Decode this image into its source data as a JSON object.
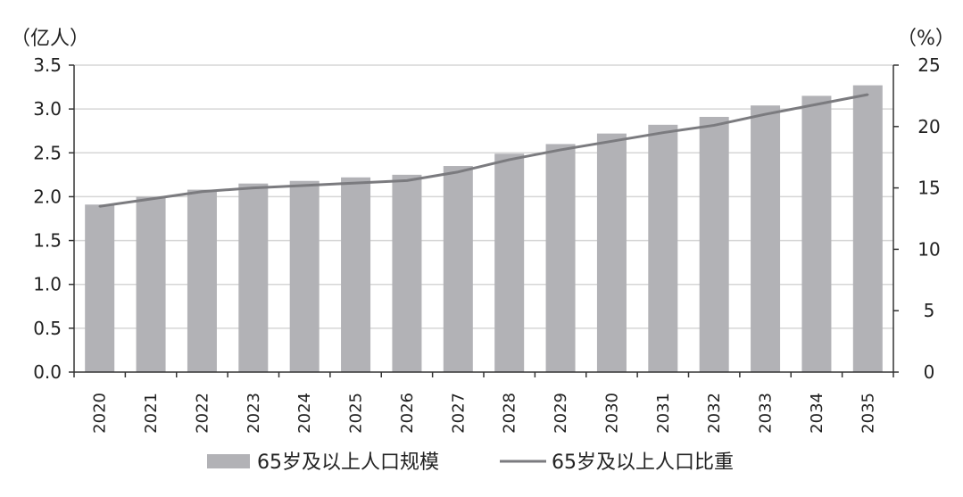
{
  "chart_data": {
    "type": "bar",
    "categories": [
      "2020",
      "2021",
      "2022",
      "2023",
      "2024",
      "2025",
      "2026",
      "2027",
      "2028",
      "2029",
      "2030",
      "2031",
      "2032",
      "2033",
      "2034",
      "2035"
    ],
    "series": [
      {
        "name": "65岁及以上人口规模",
        "type": "bar",
        "axis": "left",
        "values": [
          1.91,
          2.0,
          2.08,
          2.15,
          2.18,
          2.22,
          2.25,
          2.35,
          2.49,
          2.6,
          2.72,
          2.82,
          2.91,
          3.04,
          3.15,
          3.27
        ]
      },
      {
        "name": "65岁及以上人口比重",
        "type": "line",
        "axis": "right",
        "values": [
          13.5,
          14.1,
          14.7,
          15.0,
          15.2,
          15.4,
          15.6,
          16.3,
          17.3,
          18.1,
          18.8,
          19.5,
          20.1,
          21.0,
          21.8,
          22.6
        ]
      }
    ],
    "y_left": {
      "unit": "（亿人）",
      "ylim": [
        0,
        3.5
      ],
      "ticks": [
        "0.0",
        "0.5",
        "1.0",
        "1.5",
        "2.0",
        "2.5",
        "3.0",
        "3.5"
      ]
    },
    "y_right": {
      "unit": "（%）",
      "ylim": [
        0,
        25
      ],
      "ticks": [
        "0",
        "5",
        "10",
        "15",
        "20",
        "25"
      ]
    },
    "grid": true,
    "legend_position": "bottom",
    "colors": {
      "bar": "#b2b2b6",
      "line": "#7b7b7f",
      "grid": "#d6d6d6",
      "axis": "#333333"
    }
  }
}
